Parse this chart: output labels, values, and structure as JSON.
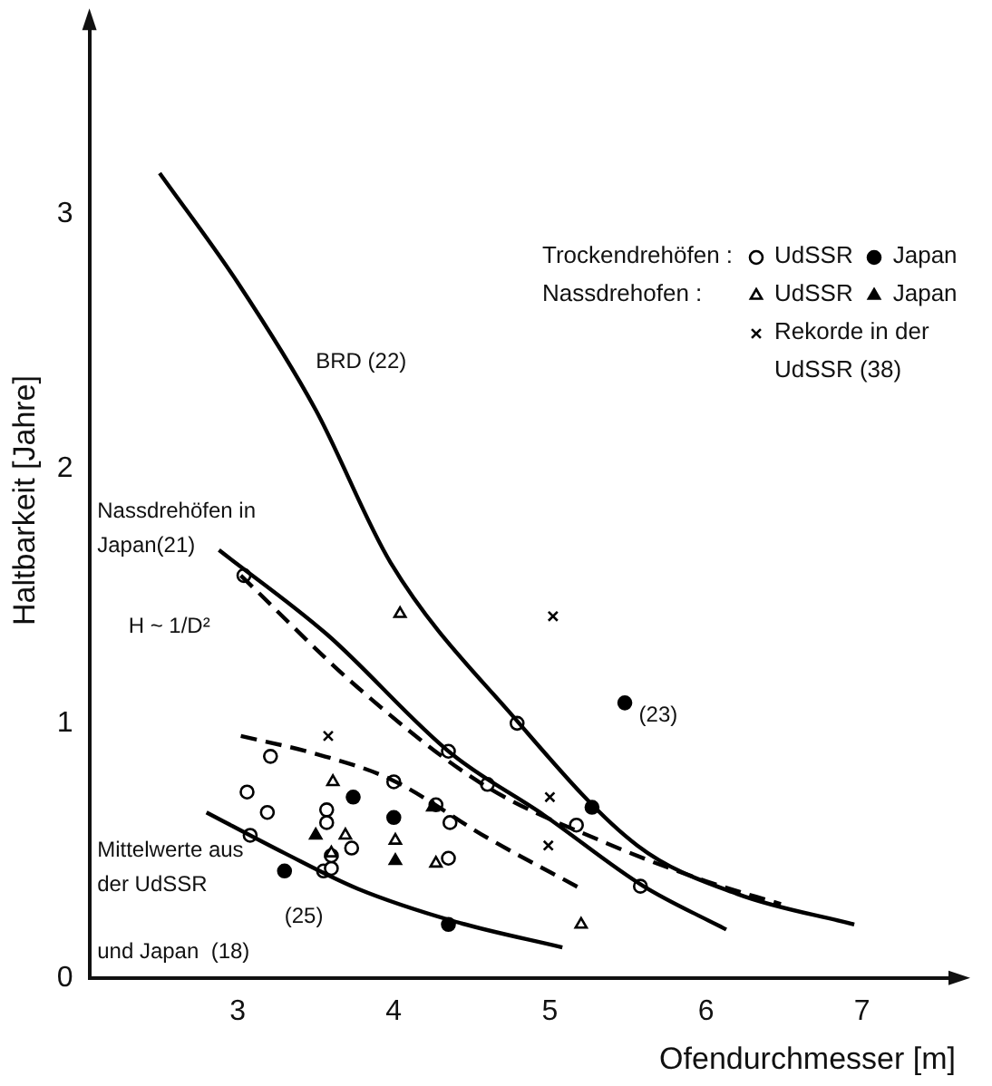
{
  "chart_data": {
    "type": "scatter",
    "xlabel": "Ofendurchmesser [m]",
    "ylabel": "Haltbarkeit [Jahre]",
    "xlim": [
      2.05,
      7.6
    ],
    "ylim": [
      0,
      3.75
    ],
    "xticks": [
      3,
      4,
      5,
      6,
      7
    ],
    "yticks": [
      0,
      1,
      2,
      3
    ],
    "grid": false,
    "legend": "top right",
    "annotations": [
      "Trockendrehöfen :",
      "Nassdrehofen :",
      "BRD (22)",
      "Nassdrehöfen in Japan(21)",
      "H ~ 1/D²",
      "(23)",
      "Mittelwerte aus der UdSSR",
      "(25)",
      "und Japan  (18)"
    ],
    "series": [
      {
        "name": "UdSSR",
        "color": "#ffffff",
        "marker": "circle",
        "x": [
          3.21,
          3.06,
          3.19,
          3.57,
          3.57,
          3.73,
          3.55,
          3.6,
          4.0,
          4.36,
          4.35,
          4.27,
          3.6,
          3.08,
          5.17,
          3.04,
          4.35,
          4.79,
          4.6,
          5.58
        ],
        "values": [
          0.87,
          0.73,
          0.65,
          0.66,
          0.61,
          0.51,
          0.42,
          0.43,
          0.77,
          0.61,
          0.47,
          0.68,
          0.48,
          0.56,
          0.6,
          1.58,
          0.89,
          1.0,
          0.76,
          0.36
        ]
      },
      {
        "name": "Japan",
        "color": "#000000",
        "marker": "circle",
        "x": [
          3.74,
          5.27,
          3.3,
          4.35,
          4.0,
          5.48
        ],
        "values": [
          0.71,
          0.67,
          0.42,
          0.21,
          0.63,
          1.08
        ]
      },
      {
        "name": "UdSSR",
        "color": "#ffffff",
        "marker": "triangle",
        "x": [
          3.61,
          3.6,
          4.01,
          4.27,
          5.2,
          4.04,
          3.69
        ],
        "values": [
          0.77,
          0.49,
          0.54,
          0.45,
          0.21,
          1.43,
          0.56
        ]
      },
      {
        "name": "Japan",
        "color": "#000000",
        "marker": "triangle",
        "x": [
          3.5,
          4.01,
          4.25
        ],
        "values": [
          0.56,
          0.46,
          0.67
        ]
      },
      {
        "name": "Rekorde in der UdSSR (38)",
        "color": "#000000",
        "marker": "cross",
        "x": [
          5.02,
          3.58,
          5.0,
          4.99
        ],
        "values": [
          1.42,
          0.95,
          0.71,
          0.52
        ]
      },
      {
        "type": "line",
        "color": "#000000",
        "line_style": "solid",
        "x": [
          2.5,
          3.0,
          3.5,
          3.98,
          4.76,
          5.56,
          6.2,
          6.95
        ],
        "values": [
          3.16,
          2.73,
          2.23,
          1.63,
          1.03,
          0.52,
          0.33,
          0.21
        ]
      },
      {
        "type": "line",
        "color": "#000000",
        "line_style": "solid",
        "x": [
          2.88,
          3.57,
          4.37,
          4.96,
          5.6,
          6.13
        ],
        "values": [
          1.68,
          1.35,
          0.88,
          0.64,
          0.36,
          0.19
        ]
      },
      {
        "type": "line",
        "color": "#000000",
        "line_style": "dashed",
        "x": [
          3.02,
          3.77,
          4.57,
          5.36,
          6.0,
          6.48
        ],
        "values": [
          1.58,
          1.14,
          0.76,
          0.53,
          0.38,
          0.29
        ]
      },
      {
        "type": "line",
        "color": "#000000",
        "line_style": "dashed",
        "x": [
          3.02,
          3.5,
          3.98,
          4.6,
          5.2
        ],
        "values": [
          0.95,
          0.88,
          0.78,
          0.55,
          0.35
        ]
      },
      {
        "type": "line",
        "color": "#000000",
        "line_style": "solid",
        "x": [
          2.8,
          3.3,
          3.77,
          4.4,
          5.08
        ],
        "values": [
          0.65,
          0.49,
          0.35,
          0.22,
          0.12
        ]
      }
    ]
  }
}
